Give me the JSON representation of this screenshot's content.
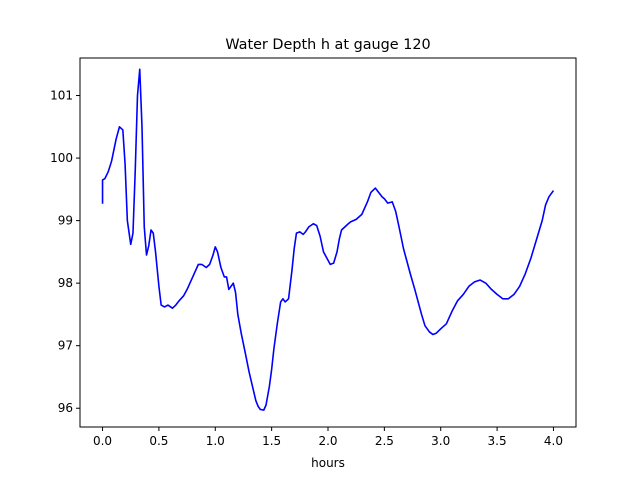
{
  "chart_data": {
    "type": "line",
    "title": "Water Depth h at gauge 120",
    "xlabel": "hours",
    "ylabel": "",
    "xlim": [
      -0.2,
      4.2
    ],
    "ylim": [
      95.7,
      101.6
    ],
    "xticks": [
      0.0,
      0.5,
      1.0,
      1.5,
      2.0,
      2.5,
      3.0,
      3.5,
      4.0
    ],
    "xtick_labels": [
      "0.0",
      "0.5",
      "1.0",
      "1.5",
      "2.0",
      "2.5",
      "3.0",
      "3.5",
      "4.0"
    ],
    "yticks": [
      96,
      97,
      98,
      99,
      100,
      101
    ],
    "ytick_labels": [
      "96",
      "97",
      "98",
      "99",
      "100",
      "101"
    ],
    "grid": false,
    "legend": "none",
    "series": [
      {
        "color": "#0000ff",
        "x": [
          0.0,
          0.0,
          0.02,
          0.05,
          0.08,
          0.12,
          0.15,
          0.18,
          0.2,
          0.22,
          0.25,
          0.27,
          0.29,
          0.31,
          0.33,
          0.35,
          0.37,
          0.39,
          0.41,
          0.43,
          0.45,
          0.47,
          0.5,
          0.52,
          0.55,
          0.58,
          0.62,
          0.65,
          0.68,
          0.72,
          0.75,
          0.8,
          0.85,
          0.88,
          0.92,
          0.95,
          0.98,
          1.0,
          1.02,
          1.05,
          1.08,
          1.1,
          1.12,
          1.14,
          1.16,
          1.18,
          1.2,
          1.23,
          1.27,
          1.3,
          1.33,
          1.36,
          1.38,
          1.4,
          1.43,
          1.45,
          1.48,
          1.5,
          1.52,
          1.55,
          1.58,
          1.6,
          1.62,
          1.65,
          1.68,
          1.7,
          1.72,
          1.75,
          1.78,
          1.8,
          1.83,
          1.87,
          1.9,
          1.93,
          1.96,
          1.99,
          2.02,
          2.05,
          2.08,
          2.1,
          2.12,
          2.15,
          2.18,
          2.2,
          2.25,
          2.3,
          2.35,
          2.38,
          2.42,
          2.45,
          2.48,
          2.5,
          2.53,
          2.57,
          2.6,
          2.63,
          2.67,
          2.7,
          2.73,
          2.77,
          2.8,
          2.83,
          2.86,
          2.9,
          2.93,
          2.96,
          3.0,
          3.05,
          3.1,
          3.15,
          3.2,
          3.25,
          3.3,
          3.35,
          3.4,
          3.45,
          3.5,
          3.55,
          3.6,
          3.65,
          3.7,
          3.75,
          3.8,
          3.85,
          3.9,
          3.93,
          3.96,
          4.0
        ],
        "y": [
          99.27,
          99.65,
          99.67,
          99.78,
          99.95,
          100.3,
          100.5,
          100.45,
          99.9,
          99.0,
          98.62,
          98.8,
          99.8,
          101.0,
          101.42,
          100.5,
          98.9,
          98.45,
          98.6,
          98.85,
          98.8,
          98.5,
          97.95,
          97.65,
          97.62,
          97.65,
          97.6,
          97.65,
          97.72,
          97.8,
          97.9,
          98.1,
          98.3,
          98.3,
          98.25,
          98.3,
          98.45,
          98.58,
          98.5,
          98.25,
          98.1,
          98.1,
          97.9,
          97.95,
          98.0,
          97.85,
          97.5,
          97.2,
          96.85,
          96.58,
          96.35,
          96.12,
          96.03,
          95.98,
          95.97,
          96.05,
          96.35,
          96.62,
          96.95,
          97.35,
          97.7,
          97.75,
          97.7,
          97.75,
          98.2,
          98.55,
          98.8,
          98.82,
          98.78,
          98.82,
          98.9,
          98.95,
          98.92,
          98.75,
          98.5,
          98.4,
          98.3,
          98.32,
          98.5,
          98.7,
          98.85,
          98.9,
          98.95,
          98.98,
          99.02,
          99.1,
          99.3,
          99.45,
          99.52,
          99.45,
          99.38,
          99.35,
          99.28,
          99.3,
          99.15,
          98.9,
          98.55,
          98.35,
          98.15,
          97.9,
          97.7,
          97.5,
          97.32,
          97.22,
          97.18,
          97.2,
          97.27,
          97.35,
          97.55,
          97.72,
          97.82,
          97.95,
          98.02,
          98.05,
          98.0,
          97.9,
          97.82,
          97.75,
          97.75,
          97.82,
          97.95,
          98.15,
          98.4,
          98.7,
          99.0,
          99.25,
          99.38,
          99.48
        ]
      }
    ]
  }
}
